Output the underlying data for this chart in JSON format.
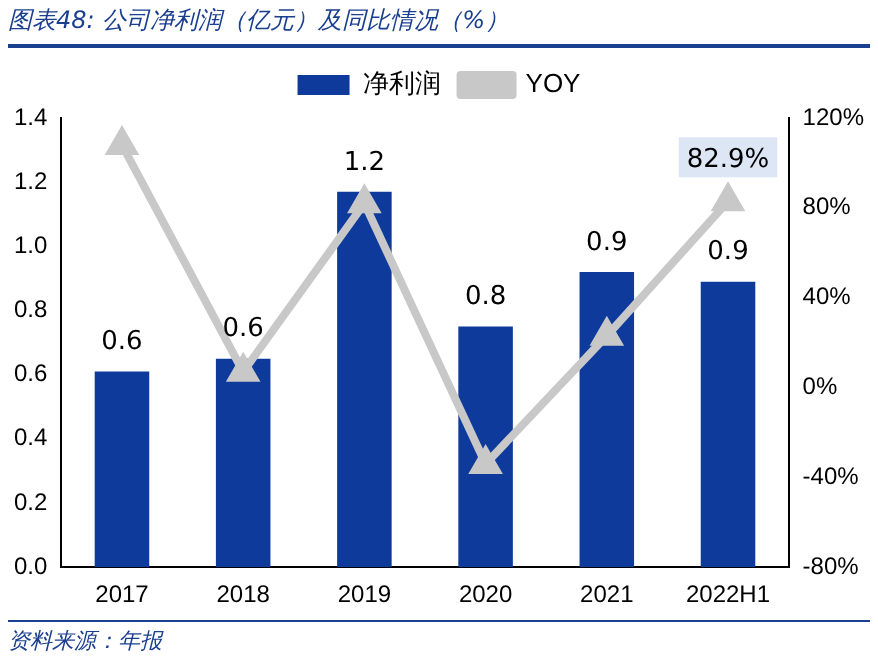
{
  "chart_data": {
    "type": "bar",
    "title": "图表48: 公司净利润（亿元）及同比情况（%）",
    "categories": [
      "2017",
      "2018",
      "2019",
      "2020",
      "2021",
      "2022H1"
    ],
    "series": [
      {
        "name": "净利润",
        "color": "#0e3a9c",
        "values": [
          0.61,
          0.65,
          1.17,
          0.75,
          0.92,
          0.89
        ],
        "value_labels": [
          "0.6",
          "0.6",
          "1.2",
          "0.8",
          "0.9",
          "0.9"
        ]
      },
      {
        "name": "YOY",
        "type": "line",
        "axis": "y2",
        "color": "#c8c8c8",
        "marker": "triangle",
        "line_style": "solid",
        "values": [
          108,
          7,
          82,
          -34,
          23,
          82.9
        ],
        "value_labels": [
          null,
          null,
          null,
          null,
          null,
          "82.9%"
        ]
      }
    ],
    "ylim": [
      0,
      1.4
    ],
    "yticks": [
      {
        "value": 0,
        "label": "0.0"
      },
      {
        "value": 0.2,
        "label": "0.2"
      },
      {
        "value": 0.4,
        "label": "0.4"
      },
      {
        "value": 0.6,
        "label": "0.6"
      },
      {
        "value": 0.8,
        "label": "0.8"
      },
      {
        "value": 1,
        "label": "1.0"
      },
      {
        "value": 1.2,
        "label": "1.2"
      },
      {
        "value": 1.4,
        "label": "1.4"
      }
    ],
    "y2lim": [
      -80,
      120
    ],
    "y2ticks": [
      {
        "value": -80,
        "label": "-80%"
      },
      {
        "value": -40,
        "label": "-40%"
      },
      {
        "value": 0,
        "label": "0%"
      },
      {
        "value": 40,
        "label": "40%"
      },
      {
        "value": 80,
        "label": "80%"
      },
      {
        "value": 120,
        "label": "120%"
      }
    ],
    "legend": "top",
    "grid": false,
    "annotations": [
      "资料来源：年报"
    ]
  }
}
